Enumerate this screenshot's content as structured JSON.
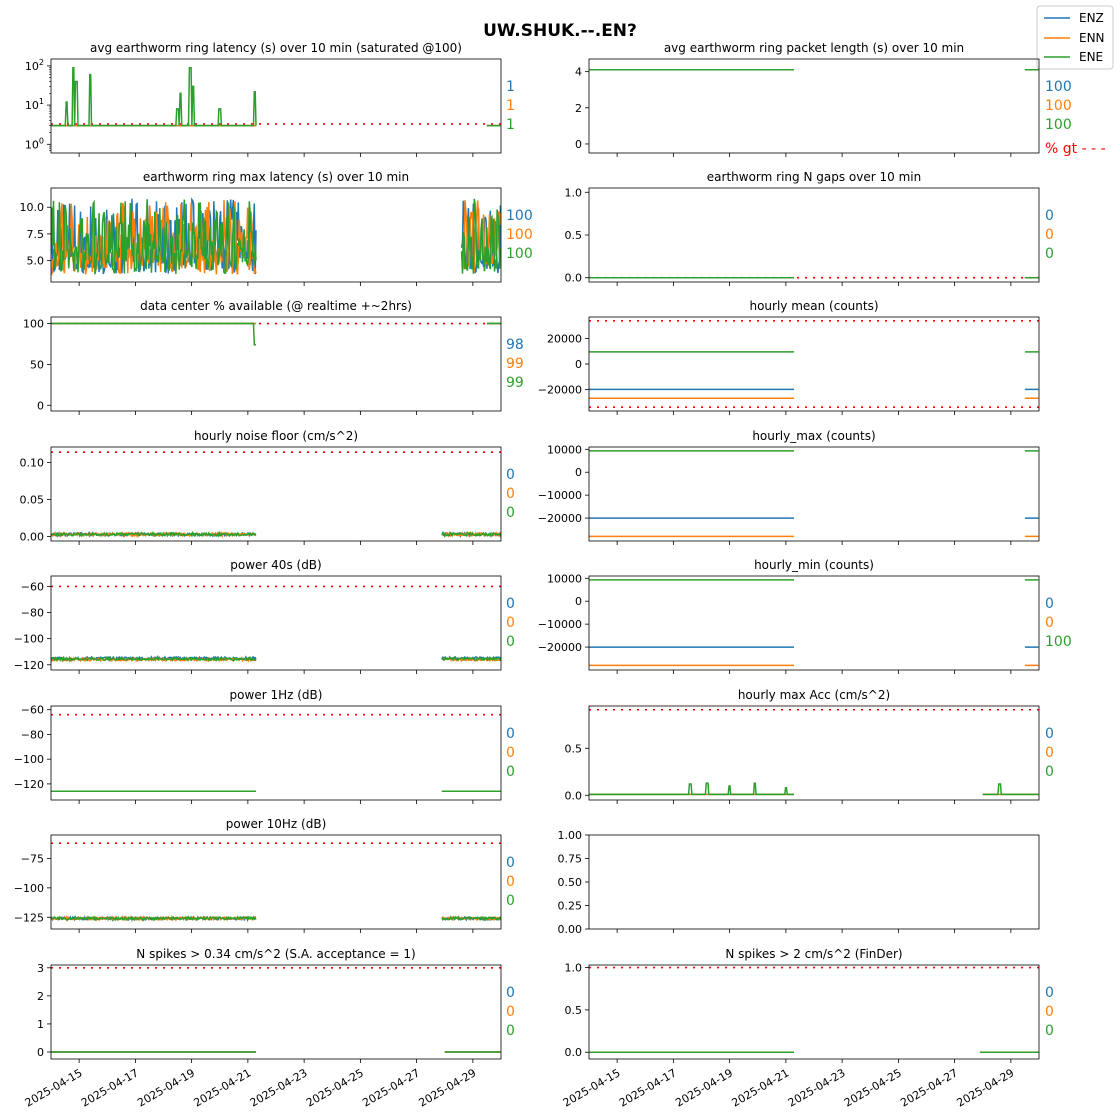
{
  "title": "UW.SHUK.--.EN?",
  "legend": {
    "placement": "top-right",
    "items": [
      {
        "label": "ENZ",
        "color": "#1f77b4"
      },
      {
        "label": "ENN",
        "color": "#ff7f0e"
      },
      {
        "label": "ENE",
        "color": "#2ca02c"
      }
    ]
  },
  "threshold_color": "#ff0000",
  "pct_gt_label": "% gt - - -",
  "chart_data": [
    {
      "id": "p0",
      "type": "line",
      "col": 0,
      "row": 0,
      "title": "avg earthworm ring latency (s)   over 10 min (saturated @100)",
      "yscale": "log",
      "ylim": [
        0.6,
        150
      ],
      "yticks": [
        1,
        10,
        100
      ],
      "ytick_labels": [
        "10^0",
        "10^1",
        "10^2"
      ],
      "threshold": 3.3,
      "data_range": [
        0,
        7.3
      ],
      "gap": [
        7.25,
        15.5
      ],
      "base": [
        3,
        3,
        3
      ],
      "spikes": [
        [
          0.55,
          12
        ],
        [
          0.8,
          90
        ],
        [
          0.9,
          40
        ],
        [
          1.4,
          60
        ],
        [
          4.5,
          8
        ],
        [
          4.6,
          20
        ],
        [
          4.95,
          90
        ],
        [
          5.05,
          30
        ],
        [
          6.0,
          8
        ],
        [
          7.25,
          22
        ]
      ],
      "pct": [
        "1",
        "1",
        "1"
      ]
    },
    {
      "id": "p1",
      "type": "line",
      "col": 1,
      "row": 0,
      "title": "avg earthworm ring packet length (s)   over 10 min",
      "ylim": [
        -0.5,
        4.7
      ],
      "yticks": [
        0,
        2,
        4
      ],
      "ytick_labels": [
        "0",
        "2",
        "4"
      ],
      "data_range": [
        0,
        7.3
      ],
      "gap": [
        7.3,
        15.5
      ],
      "base": [
        4.1,
        4.1,
        4.1
      ],
      "pct": [
        "100",
        "100",
        "100"
      ],
      "show_pct_gt": true
    },
    {
      "id": "p2",
      "type": "line",
      "col": 0,
      "row": 1,
      "title": "earthworm ring max latency (s)   over 10 min",
      "ylim": [
        3.0,
        11.8
      ],
      "yticks": [
        5,
        7.5,
        10
      ],
      "ytick_labels": [
        "5.0",
        "7.5",
        "10.0"
      ],
      "data_range": [
        0,
        7.3
      ],
      "gap": [
        7.3,
        14.6
      ],
      "oscillate": {
        "lo": 3.7,
        "hi": 10.8,
        "period": 0.2
      },
      "pct": [
        "100",
        "100",
        "100"
      ]
    },
    {
      "id": "p3",
      "type": "line",
      "col": 1,
      "row": 1,
      "title": "earthworm ring N gaps   over 10 min",
      "ylim": [
        -0.05,
        1.05
      ],
      "yticks": [
        0,
        0.5,
        1.0
      ],
      "ytick_labels": [
        "0.0",
        "0.5",
        "1.0"
      ],
      "threshold": 0.0,
      "data_range": [
        0,
        7.3
      ],
      "gap": [
        7.3,
        15.5
      ],
      "base": [
        0,
        0,
        0
      ],
      "pct": [
        "0",
        "0",
        "0"
      ]
    },
    {
      "id": "p4",
      "type": "line",
      "col": 0,
      "row": 2,
      "title": "data center % available (@ realtime +~2hrs)",
      "ylim": [
        -7,
        108
      ],
      "yticks": [
        0,
        50,
        100
      ],
      "ytick_labels": [
        "0",
        "50",
        "100"
      ],
      "threshold": 100,
      "data_range": [
        0,
        7.3
      ],
      "gap": [
        7.3,
        15.5
      ],
      "base": [
        100,
        100,
        100
      ],
      "drop": [
        7.25,
        74
      ],
      "pct": [
        "98",
        "99",
        "99"
      ]
    },
    {
      "id": "p5",
      "type": "line",
      "col": 1,
      "row": 2,
      "title": "hourly mean (counts)",
      "ylim": [
        -37000,
        37000
      ],
      "yticks": [
        -20000,
        0,
        20000
      ],
      "ytick_labels": [
        "−20000",
        "0",
        "20000"
      ],
      "threshold": [
        -34000,
        34000
      ],
      "data_range": [
        0,
        7.3
      ],
      "gap": [
        7.3,
        15.5
      ],
      "base": [
        -20000,
        -27000,
        9500
      ],
      "pct": [
        "",
        "",
        ""
      ]
    },
    {
      "id": "p6",
      "type": "line",
      "col": 0,
      "row": 3,
      "title": "hourly noise floor (cm/s^2)",
      "ylim": [
        -0.006,
        0.121
      ],
      "yticks": [
        0,
        0.05,
        0.1
      ],
      "ytick_labels": [
        "0.00",
        "0.05",
        "0.10"
      ],
      "threshold": 0.114,
      "data_range": [
        0,
        7.3
      ],
      "gap": [
        7.3,
        13.9
      ],
      "base": [
        0.003,
        0.003,
        0.003
      ],
      "wiggle": 0.002,
      "pct": [
        "0",
        "0",
        "0"
      ]
    },
    {
      "id": "p7",
      "type": "line",
      "col": 1,
      "row": 3,
      "title": "hourly_max (counts)",
      "ylim": [
        -30000,
        11000
      ],
      "yticks": [
        -20000,
        -10000,
        0,
        10000
      ],
      "ytick_labels": [
        "−20000",
        "−10000",
        "0",
        "10000"
      ],
      "data_range": [
        0,
        7.3
      ],
      "gap": [
        7.3,
        15.5
      ],
      "base": [
        -20000,
        -28000,
        9300
      ],
      "pct": [
        "",
        "",
        ""
      ]
    },
    {
      "id": "p8",
      "type": "line",
      "col": 0,
      "row": 4,
      "title": "power 40s (dB)",
      "ylim": [
        -124,
        -52
      ],
      "yticks": [
        -120,
        -100,
        -80,
        -60
      ],
      "ytick_labels": [
        "−120",
        "−100",
        "−80",
        "−60"
      ],
      "threshold": -60,
      "data_range": [
        0,
        7.3
      ],
      "gap": [
        7.3,
        13.9
      ],
      "base": [
        -115,
        -116,
        -115.5
      ],
      "wiggle": 1,
      "pct": [
        "0",
        "0",
        "0"
      ]
    },
    {
      "id": "p9",
      "type": "line",
      "col": 1,
      "row": 4,
      "title": "hourly_min (counts)",
      "ylim": [
        -30000,
        11000
      ],
      "yticks": [
        -20000,
        -10000,
        0,
        10000
      ],
      "ytick_labels": [
        "−20000",
        "−10000",
        "0",
        "10000"
      ],
      "data_range": [
        0,
        7.3
      ],
      "gap": [
        7.3,
        15.5
      ],
      "base": [
        -20000,
        -28000,
        9300
      ],
      "pct": [
        "0",
        "0",
        "100"
      ]
    },
    {
      "id": "p10",
      "type": "line",
      "col": 0,
      "row": 5,
      "title": "power 1Hz (dB)",
      "ylim": [
        -133,
        -57
      ],
      "yticks": [
        -120,
        -100,
        -80,
        -60
      ],
      "ytick_labels": [
        "−120",
        "−100",
        "−80",
        "−60"
      ],
      "threshold": -64,
      "data_range": [
        0,
        7.3
      ],
      "gap": [
        7.3,
        13.9
      ],
      "base": [
        -126,
        -126,
        -126
      ],
      "pct": [
        "0",
        "0",
        "0"
      ]
    },
    {
      "id": "p11",
      "type": "line",
      "col": 1,
      "row": 5,
      "title": "hourly max Acc (cm/s^2)",
      "ylim": [
        -0.05,
        0.95
      ],
      "yticks": [
        0,
        0.5
      ],
      "ytick_labels": [
        "0.0",
        "0.5"
      ],
      "threshold": 0.91,
      "data_range": [
        0,
        7.3
      ],
      "gap": [
        7.3,
        14.0
      ],
      "base": [
        0.01,
        0.01,
        0.01
      ],
      "spikes": [
        [
          3.6,
          0.12
        ],
        [
          4.2,
          0.13
        ],
        [
          5.0,
          0.1
        ],
        [
          5.9,
          0.13
        ],
        [
          7.0,
          0.08
        ],
        [
          14.6,
          0.12
        ]
      ],
      "pct": [
        "0",
        "0",
        "0"
      ]
    },
    {
      "id": "p12",
      "type": "line",
      "col": 0,
      "row": 6,
      "title": "power 10Hz (dB)",
      "ylim": [
        -135,
        -55
      ],
      "yticks": [
        -125,
        -100,
        -75
      ],
      "ytick_labels": [
        "−125",
        "−100",
        "−75"
      ],
      "threshold": -62,
      "data_range": [
        0,
        7.3
      ],
      "gap": [
        7.3,
        13.9
      ],
      "base": [
        -126,
        -126,
        -126
      ],
      "wiggle": 1.2,
      "pct": [
        "0",
        "0",
        "0"
      ]
    },
    {
      "id": "p13",
      "type": "empty",
      "col": 1,
      "row": 6,
      "title": "",
      "ylim": [
        0,
        1
      ],
      "yticks": [
        0,
        0.25,
        0.5,
        0.75,
        1.0
      ],
      "ytick_labels": [
        "0.00",
        "0.25",
        "0.50",
        "0.75",
        "1.00"
      ],
      "pct": [
        "",
        "",
        ""
      ]
    },
    {
      "id": "p14",
      "type": "line",
      "col": 0,
      "row": 7,
      "title": "N spikes > 0.34 cm/s^2 (S.A. acceptance = 1)",
      "ylim": [
        -0.25,
        3.1
      ],
      "yticks": [
        0,
        1,
        2,
        3
      ],
      "ytick_labels": [
        "0",
        "1",
        "2",
        "3"
      ],
      "threshold": 3,
      "data_range": [
        0,
        7.3
      ],
      "gap": [
        7.3,
        14.0
      ],
      "base": [
        0,
        0,
        0
      ],
      "pct": [
        "0",
        "0",
        "0"
      ]
    },
    {
      "id": "p15",
      "type": "line",
      "col": 1,
      "row": 7,
      "title": "N spikes > 2 cm/s^2 (FinDer)",
      "ylim": [
        -0.08,
        1.03
      ],
      "yticks": [
        0,
        0.5,
        1.0
      ],
      "ytick_labels": [
        "0.0",
        "0.5",
        "1.0"
      ],
      "threshold": 1.0,
      "data_range": [
        0,
        7.3
      ],
      "gap": [
        7.3,
        13.9
      ],
      "base": [
        0,
        0,
        0
      ],
      "pct": [
        "0",
        "0",
        "0"
      ]
    }
  ],
  "xaxis": {
    "start_date": "2025-04-14",
    "range_days": [
      0,
      16.0
    ],
    "ticks": [
      1,
      3,
      5,
      7,
      9,
      11,
      13,
      15
    ],
    "labels": [
      "2025-04-15",
      "2025-04-17",
      "2025-04-19",
      "2025-04-21",
      "2025-04-23",
      "2025-04-25",
      "2025-04-27",
      "2025-04-29"
    ]
  }
}
